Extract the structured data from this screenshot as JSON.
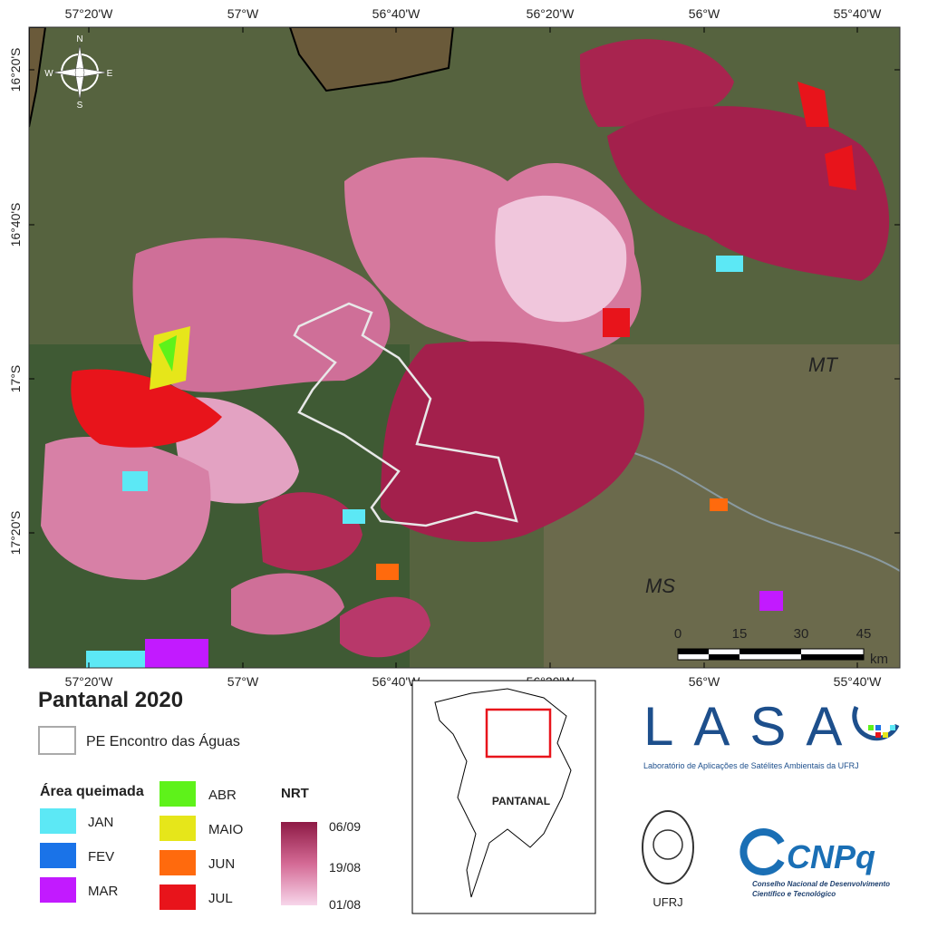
{
  "map": {
    "lon_labels": [
      "57°20'W",
      "57°W",
      "56°40'W",
      "56°20'W",
      "56°W",
      "55°40'W"
    ],
    "lat_labels": [
      "16°20'S",
      "16°40'S",
      "17°S",
      "17°20'S"
    ],
    "compass": {
      "n": "N",
      "e": "E",
      "s": "S",
      "w": "W"
    },
    "region_labels": [
      "MT",
      "MS"
    ],
    "scale_bar": {
      "labels": [
        "0",
        "15",
        "30",
        "45"
      ],
      "unit": "km"
    }
  },
  "legend": {
    "title": "Pantanal 2020",
    "park": "PE Encontro das Águas",
    "burned_title": "Área queimada",
    "months": [
      {
        "label": "JAN",
        "color": "#5ce8f5"
      },
      {
        "label": "FEV",
        "color": "#1a73e8"
      },
      {
        "label": "MAR",
        "color": "#c21aff"
      },
      {
        "label": "ABR",
        "color": "#5ef21a"
      },
      {
        "label": "MAIO",
        "color": "#e6e61a"
      },
      {
        "label": "JUN",
        "color": "#ff6a0d"
      },
      {
        "label": "JUL",
        "color": "#e8141b"
      }
    ],
    "nrt": {
      "title": "NRT",
      "labels": [
        "06/09",
        "19/08",
        "01/08"
      ]
    }
  },
  "inset": {
    "label": "PANTANAL"
  },
  "logos": {
    "lasa": "LASA",
    "lasa_subtitle": "Laboratório de Aplicações de Satélites Ambientais da UFRJ",
    "ufrj": "UFRJ",
    "cnpq": "CNPq",
    "cnpq_subtitle": [
      "Conselho Nacional de Desenvolvimento",
      "Científico e Tecnológico"
    ]
  }
}
